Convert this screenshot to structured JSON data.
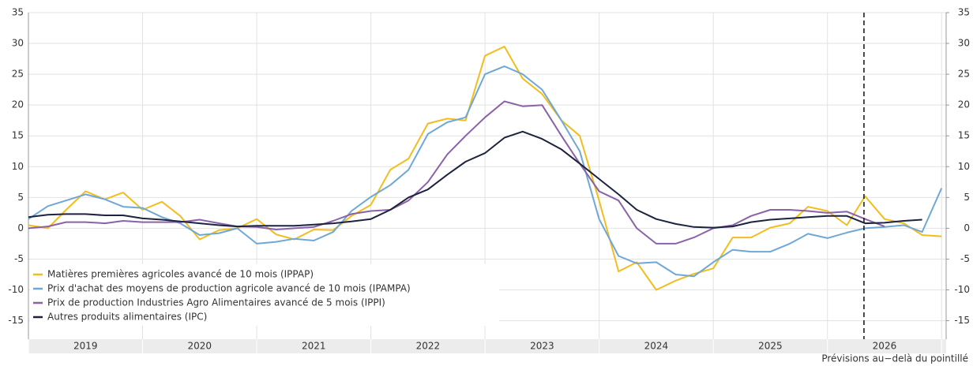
{
  "chart_data": {
    "type": "line",
    "note": "Prévisions au−delà du pointillé",
    "forecast_start": 2026.32,
    "x": [
      2019,
      2019.17,
      2019.33,
      2019.5,
      2019.67,
      2019.83,
      2020,
      2020.17,
      2020.33,
      2020.5,
      2020.67,
      2020.83,
      2021,
      2021.17,
      2021.33,
      2021.5,
      2021.67,
      2021.83,
      2022,
      2022.17,
      2022.33,
      2022.5,
      2022.67,
      2022.83,
      2023,
      2023.17,
      2023.33,
      2023.5,
      2023.67,
      2023.83,
      2024,
      2024.17,
      2024.33,
      2024.5,
      2024.67,
      2024.83,
      2025,
      2025.17,
      2025.33,
      2025.5,
      2025.67,
      2025.83,
      2026,
      2026.17,
      2026.33,
      2026.5,
      2026.67,
      2026.83,
      2027
    ],
    "series": [
      {
        "name": "Matières premières agricoles avancé de 10 mois (IPPAP)",
        "color": "#f2bd1d",
        "values": [
          0.5,
          0,
          3,
          6,
          4.7,
          5.8,
          3,
          4.3,
          2,
          -1.8,
          -0.3,
          0,
          1.5,
          -1,
          -1.8,
          -0.2,
          -0.3,
          2,
          3.8,
          9.5,
          11.3,
          17,
          17.8,
          17.5,
          28,
          29.5,
          24.3,
          21.8,
          17.5,
          15,
          4.5,
          -7,
          -5.5,
          -10,
          -8.5,
          -7.4,
          -6.5,
          -1.5,
          -1.5,
          0.1,
          0.8,
          3.5,
          2.8,
          0.5,
          5.2,
          1.5,
          0.8,
          -1.1,
          -1.3
        ]
      },
      {
        "name": "Prix d'achat des moyens de production agricole avancé de 10 mois (IPAMPA)",
        "color": "#6fa8d6",
        "values": [
          1.5,
          3.6,
          4.5,
          5.5,
          4.7,
          3.5,
          3.3,
          1.8,
          0.8,
          -1.1,
          -0.8,
          0,
          -2.5,
          -2.2,
          -1.7,
          -2,
          -0.6,
          2.8,
          5.1,
          7,
          9.5,
          15.3,
          17.2,
          18,
          25,
          26.3,
          25,
          22.5,
          17.5,
          12.5,
          1.5,
          -4.5,
          -5.7,
          -5.5,
          -7.5,
          -7.8,
          -5.5,
          -3.5,
          -3.8,
          -3.8,
          -2.5,
          -0.9,
          -1.6,
          -0.7,
          0,
          0.2,
          0.5,
          -0.6,
          6.5
        ]
      },
      {
        "name": "Prix de production Industries Agro Alimentaires avancé de 5 mois (IPPI)",
        "color": "#8b62a8",
        "values": [
          0,
          0.3,
          1,
          1,
          0.8,
          1.2,
          1,
          1,
          1,
          1.4,
          0.8,
          0.3,
          0.2,
          -0.2,
          0,
          0.2,
          1.2,
          2.3,
          2.8,
          3,
          4.5,
          7.5,
          12,
          15,
          18,
          20.6,
          19.8,
          20,
          15,
          10.5,
          6,
          4.5,
          0,
          -2.5,
          -2.5,
          -1.5,
          0,
          0.5,
          2,
          3,
          3,
          2.8,
          2.5,
          2.7,
          1.5,
          0.3,
          null,
          null,
          null
        ]
      },
      {
        "name": "Autres produits alimentaires (IPC)",
        "color": "#1c2340",
        "values": [
          1.8,
          2.2,
          2.3,
          2.3,
          2.1,
          2.1,
          1.6,
          1.4,
          1.1,
          0.8,
          0.5,
          0.3,
          0.4,
          0.4,
          0.4,
          0.6,
          0.8,
          1.1,
          1.5,
          3,
          5,
          6.3,
          8.7,
          10.8,
          12.2,
          14.7,
          15.7,
          14.5,
          12.8,
          10.5,
          8,
          5.5,
          3,
          1.5,
          0.7,
          0.2,
          0.1,
          0.3,
          1,
          1.4,
          1.6,
          1.8,
          2,
          2,
          0.8,
          0.9,
          1.2,
          1.4,
          null
        ]
      }
    ],
    "xlim": [
      2019,
      2027.04
    ],
    "xgrid": [
      2019,
      2020,
      2021,
      2022,
      2023,
      2024,
      2025,
      2026,
      2027
    ],
    "year_labels": [
      "2019",
      "2020",
      "2021",
      "2022",
      "2023",
      "2024",
      "2025",
      "2026"
    ],
    "ylim": [
      -18,
      35
    ],
    "yticks": [
      -15,
      -10,
      -5,
      0,
      5,
      10,
      15,
      20,
      25,
      30,
      35
    ],
    "y2lim": [
      -18,
      35
    ],
    "y2ticks": [
      -15,
      -10,
      -5,
      0,
      5,
      10,
      15,
      20,
      25,
      30,
      35
    ],
    "grid": true,
    "legend": "lower left"
  }
}
